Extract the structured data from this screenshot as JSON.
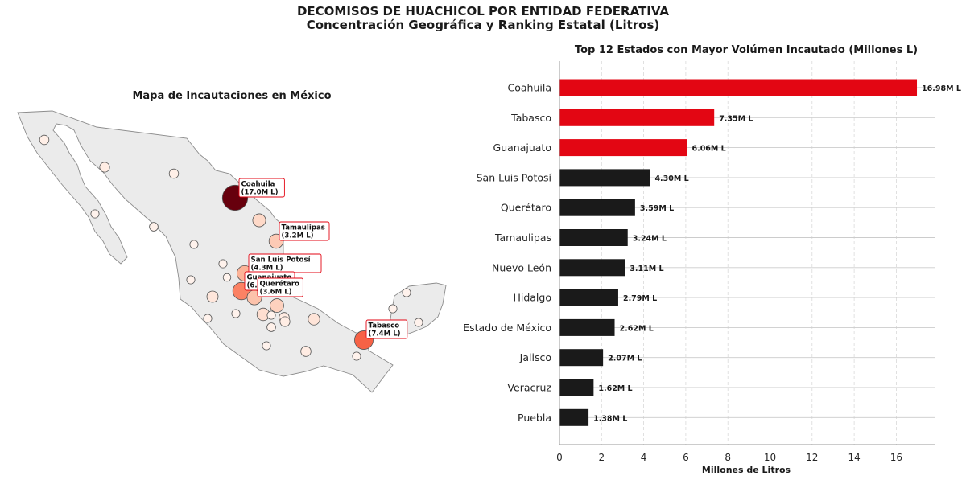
{
  "figure": {
    "title": "DECOMISOS DE HUACHICOL POR ENTIDAD FEDERATIVA",
    "subtitle": "Concentración Geográfica y Ranking Estatal (Litros)"
  },
  "colors": {
    "top3": "#e30613",
    "rest": "#1a1a1a",
    "land": "#ebebeb",
    "border": "#8c8c8c",
    "label_border": "#e30613"
  },
  "chart_data": [
    {
      "type": "scatter",
      "title": "Mapa de Incautaciones en México",
      "encoding": "bubble map; marker size and color (white→dark red) scale with volume in millions of liters",
      "labeled_points": [
        {
          "label": "Coahuila\n(17.0M L)",
          "value": 17.0
        },
        {
          "label": "Tamaulipas\n(3.2M L)",
          "value": 3.2
        },
        {
          "label": "San Luis Potosí\n(4.3M L)",
          "value": 4.3
        },
        {
          "label": "Guanajuato\n(6.1M L)",
          "value": 6.1
        },
        {
          "label": "Querétaro\n(3.6M L)",
          "value": 3.6
        },
        {
          "label": "Tabasco\n(7.4M L)",
          "value": 7.4
        }
      ]
    },
    {
      "type": "bar",
      "orientation": "horizontal",
      "title": "Top 12 Estados con Mayor Volúmen Incautado (Millones L)",
      "xlabel": "Millones de Litros",
      "ylabel": "",
      "xlim": [
        0,
        17.8
      ],
      "xticks": [
        0,
        2,
        4,
        6,
        8,
        10,
        12,
        14,
        16
      ],
      "grid": "x dashed, y solid",
      "highlight_top": 3,
      "categories": [
        "Coahuila",
        "Tabasco",
        "Guanajuato",
        "San Luis Potosí",
        "Querétaro",
        "Tamaulipas",
        "Nuevo León",
        "Hidalgo",
        "Estado de México",
        "Jalisco",
        "Veracruz",
        "Puebla"
      ],
      "values": [
        16.98,
        7.35,
        6.06,
        4.3,
        3.59,
        3.24,
        3.11,
        2.79,
        2.62,
        2.07,
        1.62,
        1.38
      ],
      "value_labels": [
        "16.98M L",
        "7.35M L",
        "6.06M L",
        "4.30M L",
        "3.59M L",
        "3.24M L",
        "3.11M L",
        "2.79M L",
        "2.62M L",
        "2.07M L",
        "1.62M L",
        "1.38M L"
      ]
    }
  ]
}
